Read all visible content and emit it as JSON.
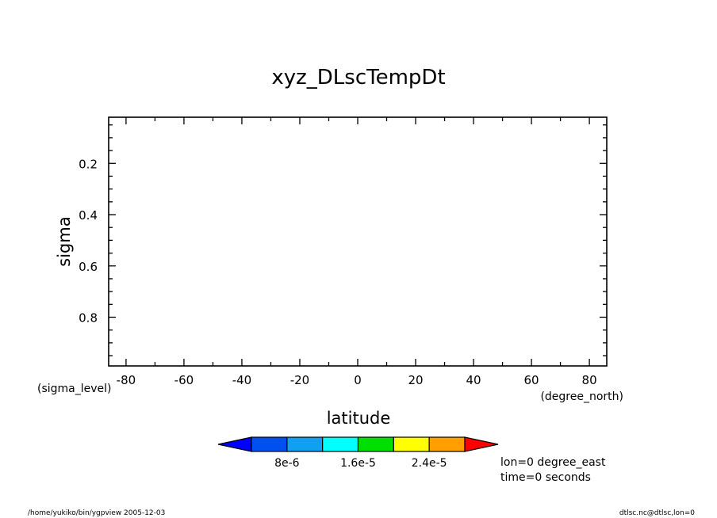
{
  "chart_data": {
    "type": "heatmap",
    "title": "xyz_DLscTempDt",
    "xlabel": "latitude",
    "xunits": "(degree_north)",
    "ylabel": "sigma",
    "yunits": "(sigma_level)",
    "xlim": [
      -86,
      86
    ],
    "ylim": [
      0.02,
      0.99
    ],
    "y_inverted": true,
    "x_ticks": [
      -80,
      -60,
      -40,
      -20,
      0,
      20,
      40,
      60,
      80
    ],
    "x_tick_labels": [
      "-80",
      "-60",
      "-40",
      "-20",
      "0",
      "20",
      "40",
      "60",
      "80"
    ],
    "y_ticks": [
      0.2,
      0.4,
      0.6,
      0.8
    ],
    "y_tick_labels": [
      "0.2",
      "0.4",
      "0.6",
      "0.8"
    ],
    "x_minor_step": 10,
    "y_minor_step": 0.05,
    "grid": false,
    "field_values": [],
    "colorbar": {
      "bounds": [
        0,
        4e-06,
        8e-06,
        1.2e-05,
        1.6e-05,
        2e-05,
        2.4e-05,
        2.8e-05,
        3.2e-05
      ],
      "colors": [
        "#0000ff",
        "#0050f0",
        "#10a0f0",
        "#00ffff",
        "#00e000",
        "#ffff00",
        "#ffa000",
        "#ff0000"
      ],
      "labels": [
        "8e-6",
        "1.6e-5",
        "2.4e-5"
      ],
      "label_values": [
        8e-06,
        1.6e-05,
        2.4e-05
      ],
      "extend": "both"
    },
    "annotations": [
      "lon=0 degree_east",
      "time=0 seconds"
    ]
  },
  "footer": {
    "left": "/home/yukiko/bin/ygpview  2005-12-03",
    "right": "dtlsc.nc@dtlsc,lon=0"
  }
}
